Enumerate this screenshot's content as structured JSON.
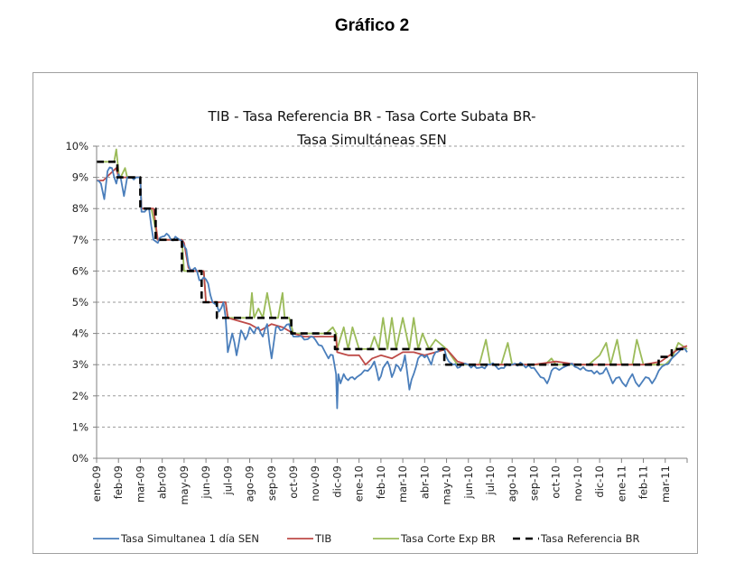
{
  "figure_title": "Gráfico 2",
  "chart_data": {
    "type": "line",
    "title_lines": [
      "TIB - Tasa Referencia BR - Tasa Corte Subata BR-",
      "Tasa Simultáneas SEN"
    ],
    "xlabel": "",
    "ylabel": "",
    "ylim": [
      0,
      10
    ],
    "yticks": [
      0,
      1,
      2,
      3,
      4,
      5,
      6,
      7,
      8,
      9,
      10
    ],
    "ytick_labels": [
      "0%",
      "1%",
      "2%",
      "3%",
      "4%",
      "5%",
      "6%",
      "7%",
      "8%",
      "9%",
      "10%"
    ],
    "grid": "horizontal-dashed",
    "x_unit": "months since ene-09",
    "xlim": [
      0,
      27
    ],
    "xtick_labels": [
      "ene-09",
      "feb-09",
      "mar-09",
      "abr-09",
      "may-09",
      "jun-09",
      "jul-09",
      "ago-09",
      "sep-09",
      "oct-09",
      "nov-09",
      "dic-09",
      "ene-10",
      "feb-10",
      "mar-10",
      "abr-10",
      "may-10",
      "jun-10",
      "jul-10",
      "ago-10",
      "sep-10",
      "oct-10",
      "nov-10",
      "dic-10",
      "ene-11",
      "feb-11",
      "mar-11"
    ],
    "legend_position": "bottom",
    "series": [
      {
        "name": "Tasa Simultanea 1 día SEN",
        "color": "#4a7ebb",
        "style": "solid",
        "x": [
          0,
          0.2,
          0.35,
          0.5,
          0.7,
          0.9,
          1.0,
          1.1,
          1.25,
          1.4,
          1.5,
          1.6,
          1.8,
          2.0,
          2.05,
          2.2,
          2.4,
          2.6,
          2.8,
          3.0,
          3.2,
          3.4,
          3.6,
          3.8,
          4.0,
          4.1,
          4.2,
          4.3,
          4.5,
          4.7,
          4.9,
          5.1,
          5.3,
          5.5,
          5.6,
          5.8,
          5.9,
          6.0,
          6.2,
          6.4,
          6.6,
          6.8,
          7.0,
          7.2,
          7.4,
          7.6,
          7.8,
          8.0,
          8.2,
          8.4,
          8.6,
          8.8,
          9.0,
          9.2,
          9.5,
          9.8,
          10.0,
          10.3,
          10.6,
          10.8,
          10.95,
          11.0,
          11.05,
          11.15,
          11.3,
          11.5,
          11.7,
          11.9,
          12.1,
          12.4,
          12.7,
          12.9,
          13.1,
          13.3,
          13.5,
          13.7,
          13.9,
          14.1,
          14.3,
          14.5,
          14.7,
          14.9,
          15.1,
          15.3,
          15.5,
          15.7,
          15.9,
          16.1,
          16.3,
          16.5,
          16.7,
          17.0,
          17.5,
          18.0,
          18.5,
          19.0,
          19.5,
          20.0,
          20.3,
          20.6,
          20.8,
          21.0,
          21.3,
          21.6,
          22.0,
          22.5,
          23.0,
          23.3,
          23.6,
          23.9,
          24.2,
          24.5,
          24.8,
          25.1,
          25.4,
          25.7,
          26.0,
          26.3,
          26.6,
          26.9,
          27.0
        ],
        "y": [
          8.9,
          8.8,
          8.3,
          9.2,
          9.3,
          8.8,
          9.1,
          9.0,
          8.4,
          9.0,
          9.0,
          9.0,
          9.0,
          9.0,
          7.9,
          7.9,
          8.0,
          7.0,
          6.9,
          7.1,
          7.2,
          7.0,
          7.1,
          7.0,
          6.8,
          6.7,
          6.2,
          6.0,
          6.1,
          5.7,
          5.8,
          5.6,
          5.0,
          4.9,
          4.7,
          5.0,
          4.5,
          3.4,
          4.0,
          3.3,
          4.1,
          3.8,
          4.2,
          4.0,
          4.2,
          3.9,
          4.3,
          3.2,
          4.2,
          4.1,
          4.2,
          4.3,
          3.9,
          3.9,
          3.8,
          3.9,
          3.8,
          3.6,
          3.2,
          3.3,
          2.7,
          1.6,
          2.7,
          2.4,
          2.7,
          2.5,
          2.6,
          2.6,
          2.7,
          2.8,
          3.1,
          2.5,
          2.9,
          3.1,
          2.6,
          3.0,
          2.8,
          3.3,
          2.2,
          2.7,
          3.2,
          3.3,
          3.3,
          3.0,
          3.4,
          3.5,
          3.5,
          3.1,
          3.0,
          2.9,
          3.0,
          3.0,
          2.9,
          3.0,
          2.9,
          3.0,
          3.0,
          2.9,
          2.6,
          2.4,
          2.8,
          2.9,
          2.9,
          3.0,
          2.9,
          2.8,
          2.7,
          2.9,
          2.4,
          2.6,
          2.3,
          2.7,
          2.3,
          2.6,
          2.4,
          2.8,
          3.0,
          3.2,
          3.4,
          3.5,
          3.4
        ],
        "smooth_noise": true
      },
      {
        "name": "TIB",
        "color": "#be4b48",
        "style": "solid",
        "x": [
          0,
          0.3,
          0.6,
          0.9,
          1.0,
          1.1,
          1.5,
          2.0,
          2.05,
          2.4,
          2.6,
          2.8,
          3.0,
          3.5,
          3.9,
          4.0,
          4.2,
          4.4,
          4.6,
          4.9,
          5.0,
          5.5,
          5.9,
          6.0,
          6.5,
          7.0,
          7.5,
          8.0,
          8.5,
          9.0,
          9.5,
          10.0,
          10.5,
          10.95,
          11.0,
          11.5,
          12.0,
          12.3,
          12.6,
          13.0,
          13.5,
          14.0,
          14.5,
          15.0,
          15.5,
          16.0,
          16.5,
          17.0,
          18.0,
          19.0,
          20.0,
          21.0,
          22.0,
          23.0,
          24.0,
          25.0,
          25.8,
          26.2,
          26.6,
          27.0
        ],
        "y": [
          8.9,
          8.9,
          9.1,
          9.3,
          9.0,
          9.0,
          9.0,
          9.0,
          8.0,
          8.0,
          8.0,
          7.0,
          7.0,
          7.0,
          7.0,
          6.9,
          6.1,
          6.0,
          6.0,
          6.0,
          5.0,
          5.0,
          5.0,
          4.5,
          4.4,
          4.3,
          4.1,
          4.3,
          4.2,
          4.0,
          3.9,
          3.9,
          3.9,
          3.9,
          3.4,
          3.3,
          3.3,
          3.0,
          3.2,
          3.3,
          3.2,
          3.4,
          3.4,
          3.3,
          3.4,
          3.5,
          3.1,
          3.0,
          3.0,
          3.0,
          3.0,
          3.1,
          3.0,
          3.0,
          3.0,
          3.0,
          3.1,
          3.3,
          3.5,
          3.6
        ]
      },
      {
        "name": "Tasa Corte Exp BR",
        "color": "#9bbb59",
        "style": "solid",
        "x": [
          0,
          0.8,
          0.9,
          1.0,
          1.05,
          1.1,
          1.3,
          1.4,
          1.5,
          2.0,
          2.05,
          2.5,
          2.8,
          3.0,
          3.5,
          3.9,
          4.0,
          4.5,
          4.9,
          5.0,
          5.5,
          5.9,
          6.0,
          6.5,
          7.0,
          7.1,
          7.2,
          7.4,
          7.6,
          7.8,
          8.0,
          8.3,
          8.5,
          8.6,
          8.8,
          9.0,
          9.5,
          10.0,
          10.5,
          10.8,
          10.95,
          11.0,
          11.3,
          11.5,
          11.7,
          12.0,
          12.5,
          12.7,
          12.9,
          13.1,
          13.3,
          13.5,
          13.7,
          14.0,
          14.3,
          14.5,
          14.7,
          14.9,
          15.2,
          15.5,
          16.0,
          16.5,
          17.0,
          17.5,
          17.8,
          18.0,
          18.5,
          18.8,
          19.0,
          19.5,
          20.0,
          20.5,
          20.8,
          21.0,
          21.5,
          22.0,
          22.5,
          23.0,
          23.3,
          23.5,
          23.8,
          24.0,
          24.5,
          24.7,
          25.0,
          25.5,
          26.0,
          26.3,
          26.6,
          27.0
        ],
        "y": [
          9.5,
          9.5,
          9.9,
          9.2,
          9.0,
          9.0,
          9.3,
          9.0,
          9.0,
          9.0,
          8.0,
          8.0,
          7.0,
          7.0,
          7.0,
          7.0,
          6.0,
          6.0,
          6.0,
          5.0,
          5.0,
          5.0,
          4.5,
          4.5,
          4.5,
          5.3,
          4.5,
          4.8,
          4.5,
          5.3,
          4.5,
          4.5,
          5.3,
          4.5,
          4.5,
          4.0,
          4.0,
          4.0,
          4.0,
          4.2,
          4.0,
          3.5,
          4.2,
          3.5,
          4.2,
          3.5,
          3.5,
          3.9,
          3.5,
          4.5,
          3.5,
          4.5,
          3.5,
          4.5,
          3.5,
          4.5,
          3.5,
          4.0,
          3.5,
          3.8,
          3.5,
          3.0,
          3.0,
          3.0,
          3.8,
          3.0,
          3.0,
          3.7,
          3.0,
          3.0,
          3.0,
          3.0,
          3.2,
          3.0,
          3.0,
          3.0,
          3.0,
          3.3,
          3.7,
          3.0,
          3.8,
          3.0,
          3.0,
          3.8,
          3.0,
          3.0,
          3.0,
          3.2,
          3.7,
          3.5
        ]
      },
      {
        "name": "Tasa Referencia BR",
        "color": "#000000",
        "style": "dashed",
        "x": [
          0,
          0.95,
          0.95,
          2.0,
          2.0,
          2.7,
          2.7,
          3.9,
          3.9,
          4.8,
          4.8,
          5.5,
          5.5,
          6.0,
          6.0,
          8.9,
          8.9,
          10.9,
          10.9,
          15.9,
          15.9,
          25.7,
          25.7,
          26.3,
          26.3,
          27.0
        ],
        "y": [
          9.5,
          9.5,
          9.0,
          9.0,
          8.0,
          8.0,
          7.0,
          7.0,
          6.0,
          6.0,
          5.0,
          5.0,
          4.5,
          4.5,
          4.5,
          4.5,
          4.0,
          4.0,
          3.5,
          3.5,
          3.0,
          3.0,
          3.25,
          3.25,
          3.5,
          3.5
        ]
      }
    ]
  }
}
